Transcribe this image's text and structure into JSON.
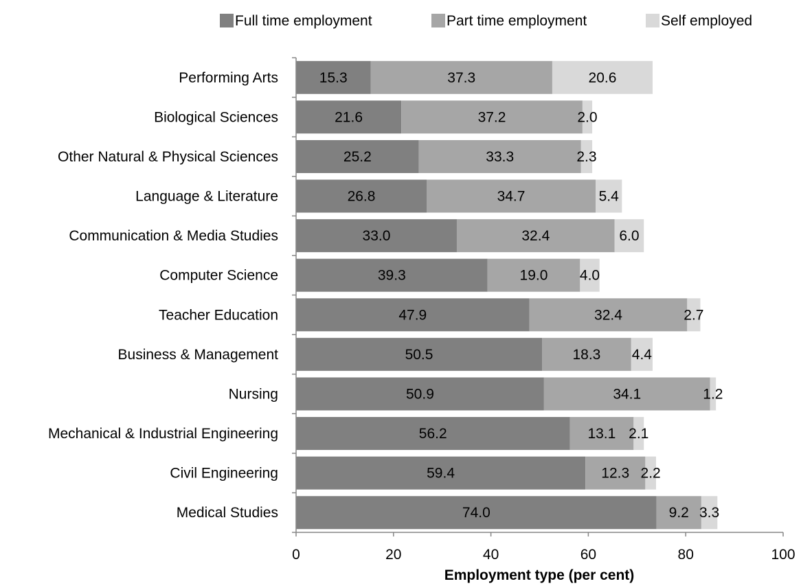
{
  "chart_data": {
    "type": "bar",
    "orientation": "horizontal",
    "stacked": true,
    "categories": [
      "Performing Arts",
      "Biological Sciences",
      "Other Natural & Physical Sciences",
      "Language & Literature",
      "Communication & Media Studies",
      "Computer Science",
      "Teacher Education",
      "Business & Management",
      "Nursing",
      "Mechanical & Industrial Engineering",
      "Civil Engineering",
      "Medical Studies"
    ],
    "series": [
      {
        "name": "Full time employment",
        "color": "#808080",
        "values": [
          15.3,
          21.6,
          25.2,
          26.8,
          33.0,
          39.3,
          47.9,
          50.5,
          50.9,
          56.2,
          59.4,
          74.0
        ],
        "labels": [
          "15.3",
          "21.6",
          "25.2",
          "26.8",
          "33.0",
          "39.3",
          "47.9",
          "50.5",
          "50.9",
          "56.2",
          "59.4",
          "74.0"
        ]
      },
      {
        "name": "Part time employment",
        "color": "#a6a6a6",
        "values": [
          37.3,
          37.2,
          33.3,
          34.7,
          32.4,
          19.0,
          32.4,
          18.3,
          34.1,
          13.1,
          12.3,
          9.2
        ],
        "labels": [
          "37.3",
          "37.2",
          "33.3",
          "34.7",
          "32.4",
          "19.0",
          "32.4",
          "18.3",
          "34.1",
          "13.1",
          "12.3",
          "9.2"
        ]
      },
      {
        "name": "Self employed",
        "color": "#d9d9d9",
        "values": [
          20.6,
          2.0,
          2.3,
          5.4,
          6.0,
          4.0,
          2.7,
          4.4,
          1.2,
          2.1,
          2.2,
          3.3
        ],
        "labels": [
          "20.6",
          "2.0",
          "2.3",
          "5.4",
          "6.0",
          "4.0",
          "2.7",
          "4.4",
          "1.2",
          "2.1",
          "2.2",
          "3.3"
        ]
      }
    ],
    "xlabel": "Employment type (per cent)",
    "ylabel": "",
    "xlim": [
      0,
      100
    ],
    "xticks": [
      0,
      20,
      40,
      60,
      80,
      100
    ],
    "xtick_labels": [
      "0",
      "20",
      "40",
      "60",
      "80",
      "100"
    ],
    "grid": false,
    "legend_position": "top"
  }
}
